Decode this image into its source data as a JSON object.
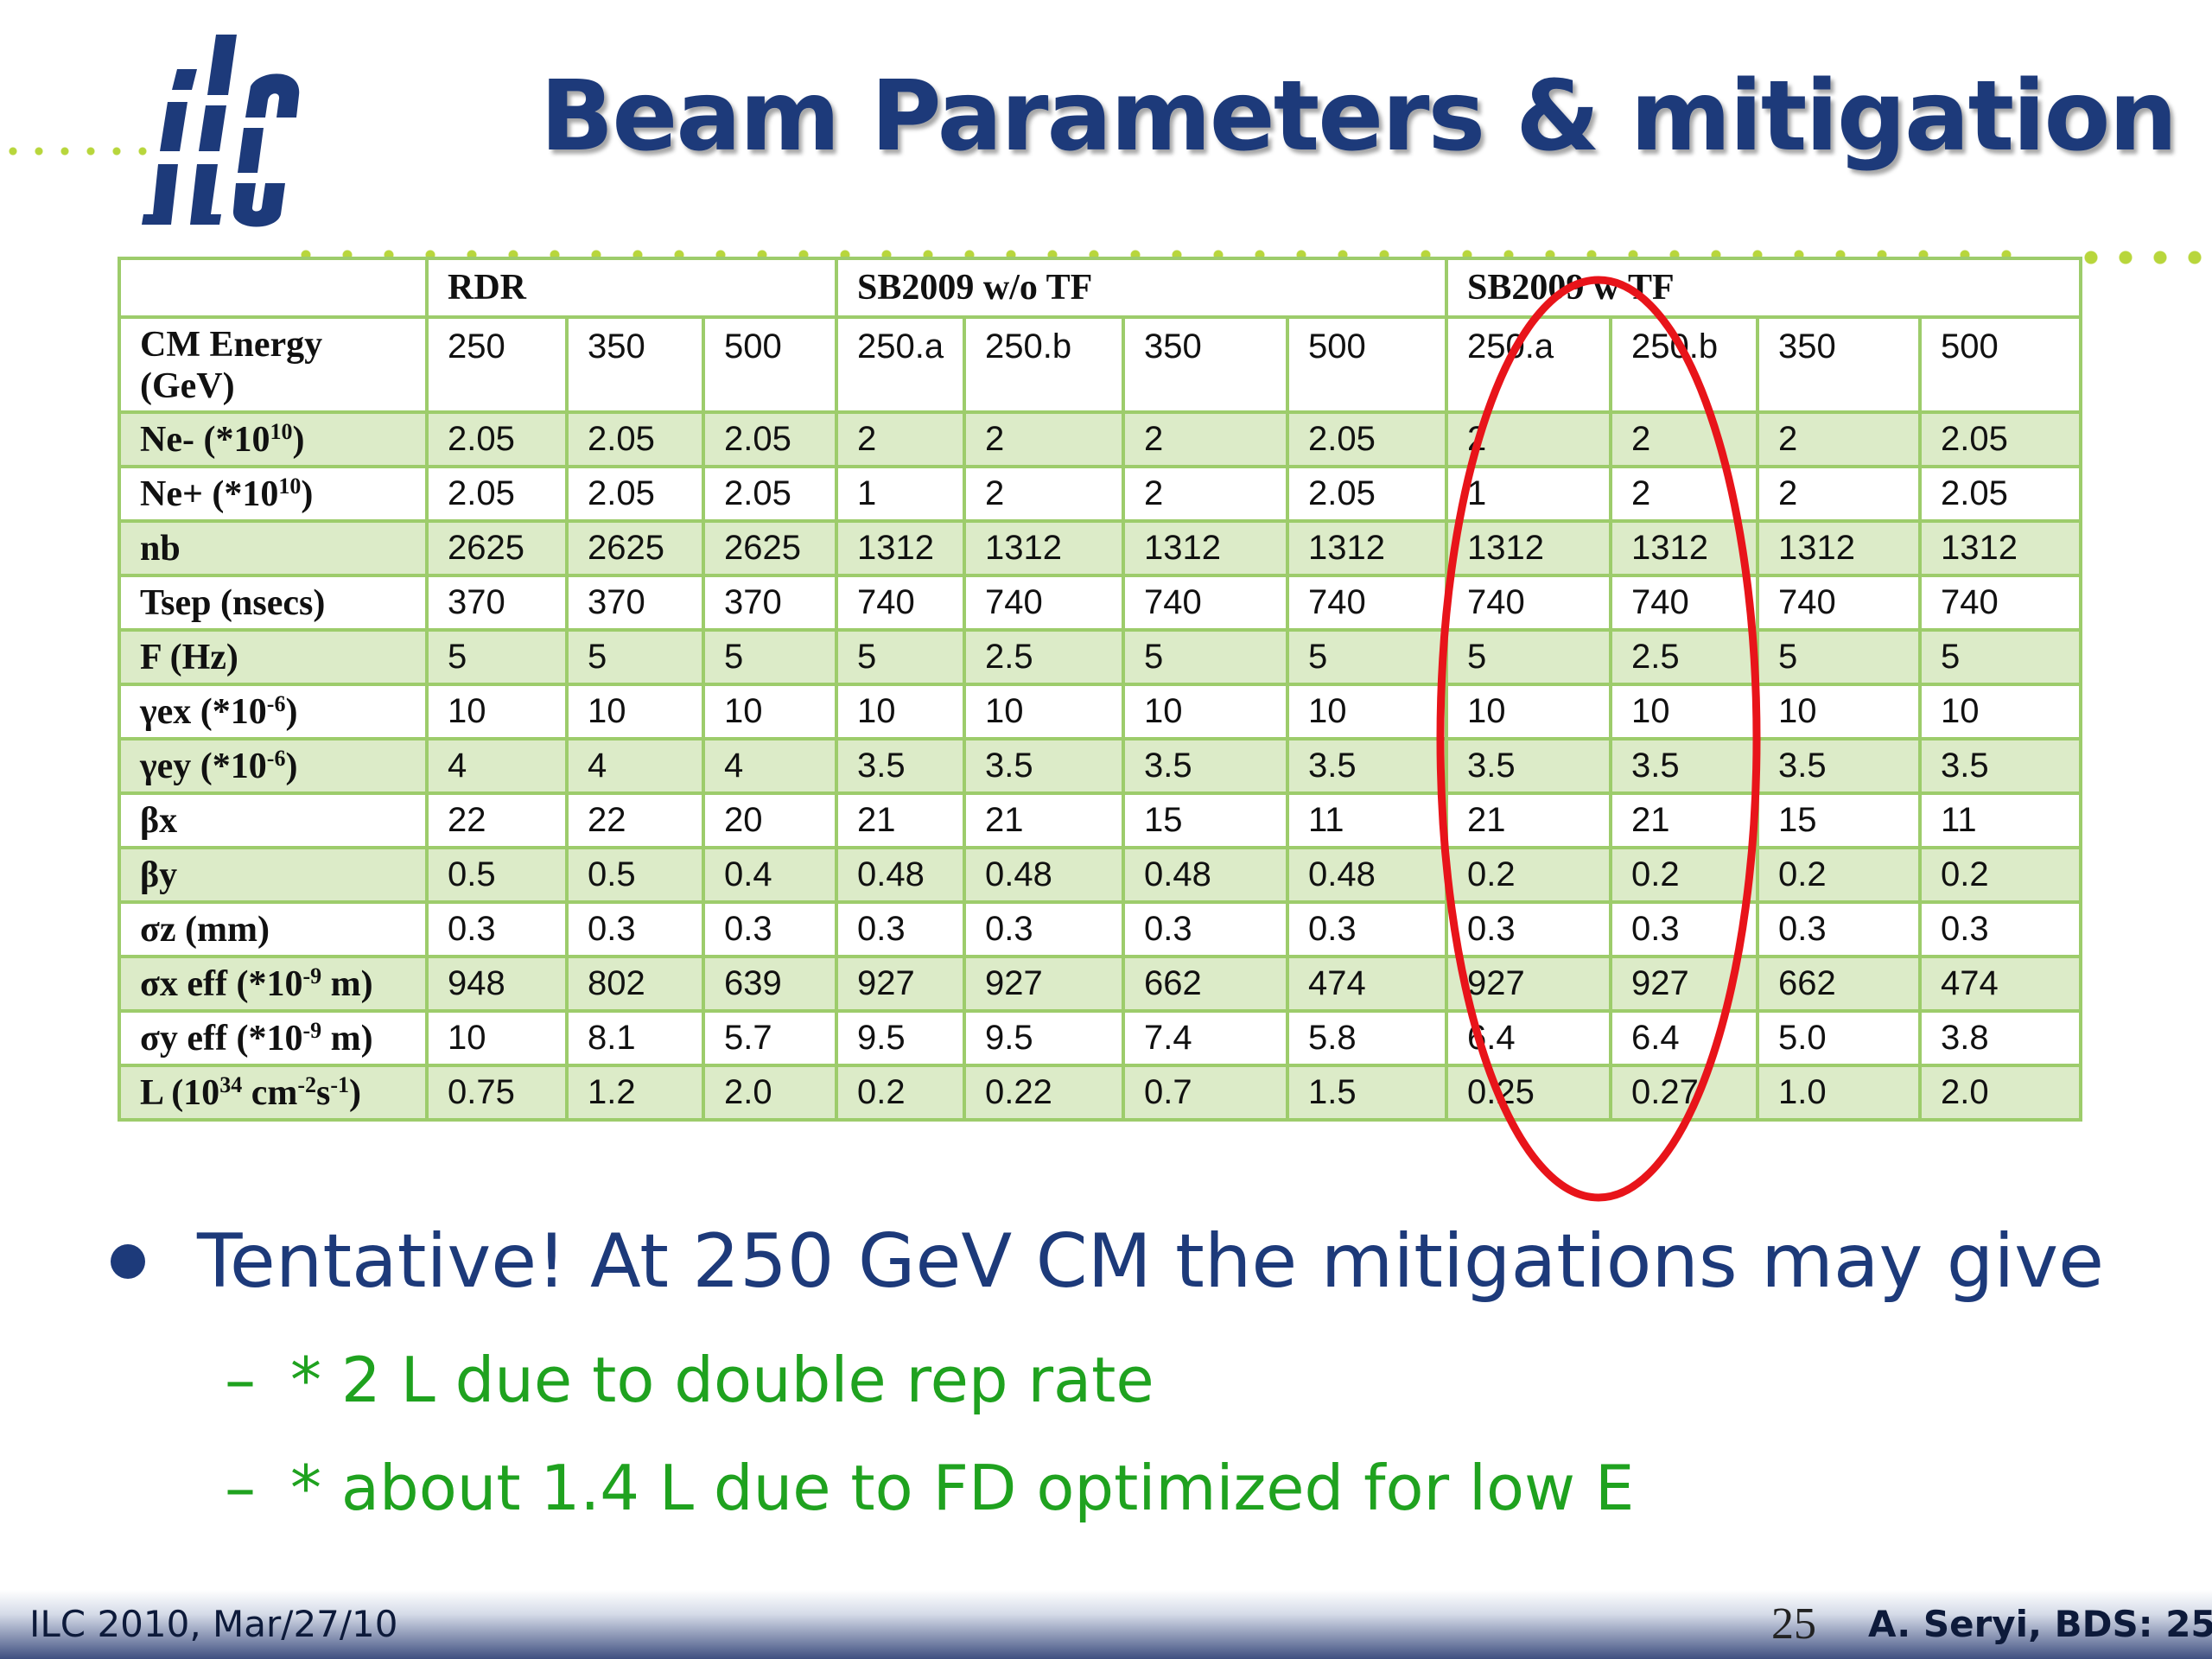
{
  "title": "Beam Parameters & mitigation",
  "logo": {
    "text": "ilc"
  },
  "table": {
    "groups": [
      "RDR",
      "SB2009 w/o TF",
      "SB2009 w TF"
    ],
    "energy_label_line1": "CM Energy",
    "energy_label_line2": "(GeV)",
    "energies": [
      "250",
      "350",
      "500",
      "250.a",
      "250.b",
      "350",
      "500",
      "250.a",
      "250.b",
      "350",
      "500"
    ],
    "rows": [
      {
        "label": "Ne- (*10",
        "sup": "10",
        "after": ")",
        "values": [
          "2.05",
          "2.05",
          "2.05",
          "2",
          "2",
          "2",
          "2.05",
          "2",
          "2",
          "2",
          "2.05"
        ]
      },
      {
        "label": "Ne+ (*10",
        "sup": "10",
        "after": ")",
        "values": [
          "2.05",
          "2.05",
          "2.05",
          "1",
          "2",
          "2",
          "2.05",
          "1",
          "2",
          "2",
          "2.05"
        ]
      },
      {
        "label": "nb",
        "sup": "",
        "after": "",
        "values": [
          "2625",
          "2625",
          "2625",
          "1312",
          "1312",
          "1312",
          "1312",
          "1312",
          "1312",
          "1312",
          "1312"
        ]
      },
      {
        "label": "Tsep (nsecs)",
        "sup": "",
        "after": "",
        "values": [
          "370",
          "370",
          "370",
          "740",
          "740",
          "740",
          "740",
          "740",
          "740",
          "740",
          "740"
        ]
      },
      {
        "label": "F (Hz)",
        "sup": "",
        "after": "",
        "values": [
          "5",
          "5",
          "5",
          "5",
          "2.5",
          "5",
          "5",
          "5",
          "2.5",
          "5",
          "5"
        ]
      },
      {
        "label": "γex (*10",
        "sup": "-6",
        "after": ")",
        "values": [
          "10",
          "10",
          "10",
          "10",
          "10",
          "10",
          "10",
          "10",
          "10",
          "10",
          "10"
        ]
      },
      {
        "label": "γey (*10",
        "sup": "-6",
        "after": ")",
        "values": [
          "4",
          "4",
          "4",
          "3.5",
          "3.5",
          "3.5",
          "3.5",
          "3.5",
          "3.5",
          "3.5",
          "3.5"
        ]
      },
      {
        "label": "βx",
        "sup": "",
        "after": "",
        "values": [
          "22",
          "22",
          "20",
          "21",
          "21",
          "15",
          "11",
          "21",
          "21",
          "15",
          "11"
        ]
      },
      {
        "label": "βy",
        "sup": "",
        "after": "",
        "values": [
          "0.5",
          "0.5",
          "0.4",
          "0.48",
          "0.48",
          "0.48",
          "0.48",
          "0.2",
          "0.2",
          "0.2",
          "0.2"
        ]
      },
      {
        "label": "σz (mm)",
        "sup": "",
        "after": "",
        "values": [
          "0.3",
          "0.3",
          "0.3",
          "0.3",
          "0.3",
          "0.3",
          "0.3",
          "0.3",
          "0.3",
          "0.3",
          "0.3"
        ]
      },
      {
        "label": "σx eff (*10",
        "sup": "-9",
        "after": " m)",
        "values": [
          "948",
          "802",
          "639",
          "927",
          "927",
          "662",
          "474",
          "927",
          "927",
          "662",
          "474"
        ]
      },
      {
        "label": "σy eff (*10",
        "sup": "-9",
        "after": " m)",
        "values": [
          "10",
          "8.1",
          "5.7",
          "9.5",
          "9.5",
          "7.4",
          "5.8",
          "6.4",
          "6.4",
          "5.0",
          "3.8"
        ]
      },
      {
        "label": "L (10",
        "sup": "34",
        "after": " cm",
        "sup2": "-2",
        "after2": "s",
        "sup3": "-1",
        "after3": ")",
        "values": [
          "0.75",
          "1.2",
          "2.0",
          "0.2",
          "0.22",
          "0.7",
          "1.5",
          "0.25",
          "0.27",
          "1.0",
          "2.0"
        ]
      }
    ]
  },
  "bullets": {
    "main": "Tentative! At 250 GeV CM the mitigations may give",
    "sub": [
      {
        "dash": "–",
        "text": "* 2 L due to double rep rate"
      },
      {
        "dash": "–",
        "text": "* about 1.4 L due to FD optimized for low E"
      }
    ]
  },
  "footer": {
    "left": "ILC 2010, Mar/27/10",
    "page": "25",
    "right": "A. Seryi, BDS: 25"
  },
  "colors": {
    "title": "#1d3a7a",
    "sub_bullets": "#1fa21f",
    "table_border": "#9dcc6b",
    "table_stripe": "#dcebc8",
    "highlight_ellipse": "#e8141a"
  }
}
